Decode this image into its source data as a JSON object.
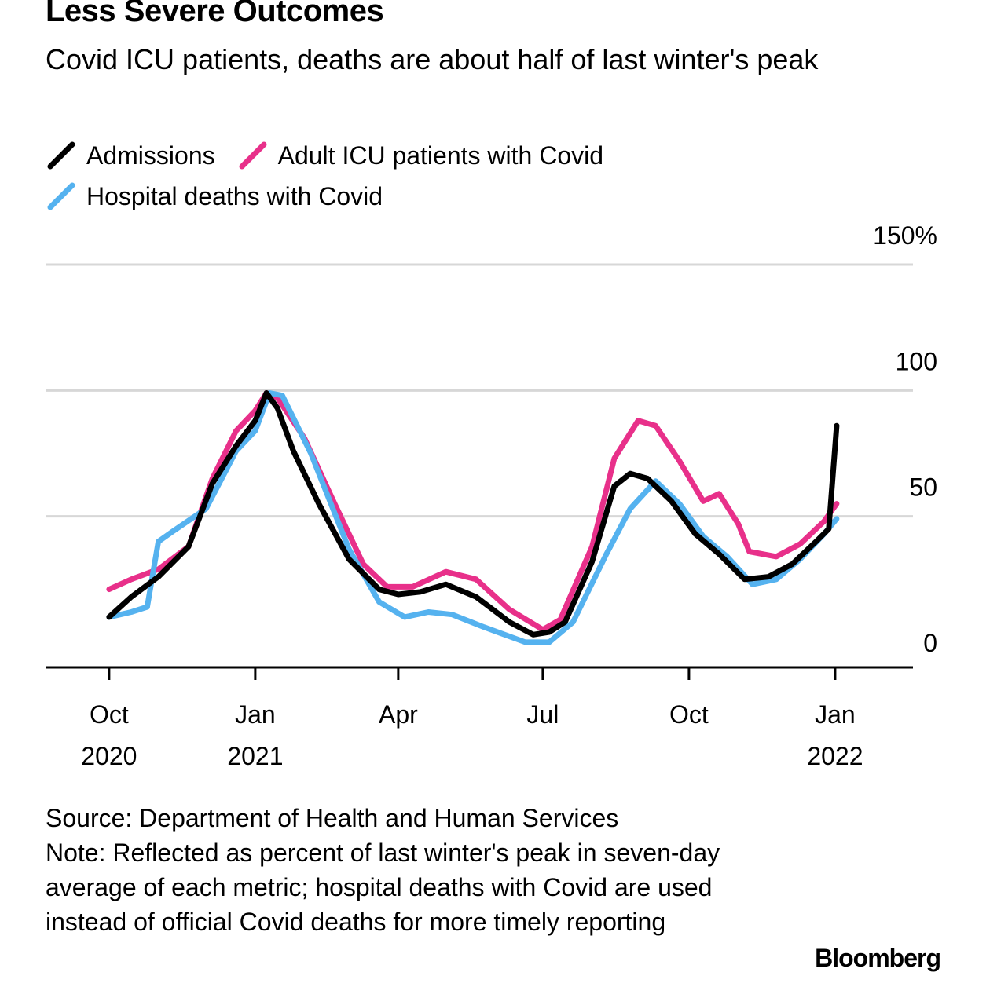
{
  "title": "Less Severe Outcomes",
  "subtitle": "Covid ICU patients, deaths are about half of last winter's peak",
  "legend": [
    {
      "label": "Admissions",
      "color": "#000000"
    },
    {
      "label": "Adult ICU patients with Covid",
      "color": "#e8308a"
    },
    {
      "label": "Hospital deaths with Covid",
      "color": "#55b2ef"
    }
  ],
  "source": "Source: Department of Health and Human Services",
  "note": "Note: Reflected as percent of last winter's peak in seven-day average of each metric; hospital deaths with Covid are used instead of official Covid deaths for more timely reporting",
  "logo": "Bloomberg",
  "chart_data": {
    "type": "line",
    "ylim": [
      -10,
      150
    ],
    "yticks": [
      {
        "value": 0,
        "label": "0"
      },
      {
        "value": 50,
        "label": "50"
      },
      {
        "value": 100,
        "label": "100"
      },
      {
        "value": 150,
        "label": "150%"
      }
    ],
    "xlim": [
      "2020-08-22",
      "2022-02-19"
    ],
    "xticks": [
      {
        "date": "2020-10-01",
        "label": [
          "Oct",
          "2020"
        ]
      },
      {
        "date": "2021-01-01",
        "label": [
          "Jan",
          "2021"
        ]
      },
      {
        "date": "2021-04-01",
        "label": [
          "Apr"
        ]
      },
      {
        "date": "2021-07-01",
        "label": [
          "Jul"
        ]
      },
      {
        "date": "2021-10-01",
        "label": [
          "Oct"
        ]
      },
      {
        "date": "2022-01-01",
        "label": [
          "Jan",
          "2022"
        ]
      }
    ],
    "grid": true,
    "series": [
      {
        "name": "Admissions",
        "color": "#000000",
        "points": [
          [
            "2020-10-01",
            10
          ],
          [
            "2020-10-15",
            18
          ],
          [
            "2020-11-01",
            26
          ],
          [
            "2020-11-20",
            38
          ],
          [
            "2020-12-05",
            63
          ],
          [
            "2020-12-20",
            78
          ],
          [
            "2021-01-01",
            88
          ],
          [
            "2021-01-08",
            99
          ],
          [
            "2021-01-15",
            93
          ],
          [
            "2021-01-25",
            76
          ],
          [
            "2021-02-10",
            55
          ],
          [
            "2021-03-01",
            33
          ],
          [
            "2021-03-20",
            21
          ],
          [
            "2021-04-01",
            19
          ],
          [
            "2021-04-15",
            20
          ],
          [
            "2021-05-01",
            23
          ],
          [
            "2021-05-20",
            18
          ],
          [
            "2021-06-10",
            8
          ],
          [
            "2021-06-25",
            3
          ],
          [
            "2021-07-05",
            4
          ],
          [
            "2021-07-15",
            8
          ],
          [
            "2021-08-01",
            32
          ],
          [
            "2021-08-15",
            62
          ],
          [
            "2021-08-25",
            67
          ],
          [
            "2021-09-05",
            65
          ],
          [
            "2021-09-20",
            56
          ],
          [
            "2021-10-05",
            43
          ],
          [
            "2021-10-20",
            35
          ],
          [
            "2021-11-05",
            25
          ],
          [
            "2021-11-20",
            26
          ],
          [
            "2021-12-05",
            31
          ],
          [
            "2021-12-20",
            40
          ],
          [
            "2021-12-28",
            45
          ],
          [
            "2022-01-02",
            86
          ]
        ]
      },
      {
        "name": "Adult ICU patients with Covid",
        "color": "#e8308a",
        "points": [
          [
            "2020-10-01",
            21
          ],
          [
            "2020-10-15",
            25
          ],
          [
            "2020-11-01",
            29
          ],
          [
            "2020-11-20",
            38
          ],
          [
            "2020-12-05",
            65
          ],
          [
            "2020-12-20",
            84
          ],
          [
            "2021-01-01",
            92
          ],
          [
            "2021-01-08",
            99
          ],
          [
            "2021-01-15",
            97
          ],
          [
            "2021-02-01",
            81
          ],
          [
            "2021-02-20",
            55
          ],
          [
            "2021-03-10",
            31
          ],
          [
            "2021-03-25",
            22
          ],
          [
            "2021-04-10",
            22
          ],
          [
            "2021-05-01",
            28
          ],
          [
            "2021-05-20",
            25
          ],
          [
            "2021-06-10",
            13
          ],
          [
            "2021-07-01",
            5
          ],
          [
            "2021-07-12",
            9
          ],
          [
            "2021-08-01",
            38
          ],
          [
            "2021-08-15",
            73
          ],
          [
            "2021-08-30",
            88
          ],
          [
            "2021-09-10",
            86
          ],
          [
            "2021-09-25",
            72
          ],
          [
            "2021-10-10",
            56
          ],
          [
            "2021-10-20",
            59
          ],
          [
            "2021-11-01",
            47
          ],
          [
            "2021-11-08",
            36
          ],
          [
            "2021-11-25",
            34
          ],
          [
            "2021-12-10",
            39
          ],
          [
            "2021-12-25",
            48
          ],
          [
            "2022-01-02",
            55
          ]
        ]
      },
      {
        "name": "Hospital deaths with Covid",
        "color": "#55b2ef",
        "points": [
          [
            "2020-10-01",
            10
          ],
          [
            "2020-10-15",
            12
          ],
          [
            "2020-10-25",
            14
          ],
          [
            "2020-11-01",
            40
          ],
          [
            "2020-11-10",
            44
          ],
          [
            "2020-12-01",
            53
          ],
          [
            "2020-12-20",
            76
          ],
          [
            "2021-01-01",
            84
          ],
          [
            "2021-01-10",
            99
          ],
          [
            "2021-01-18",
            98
          ],
          [
            "2021-02-05",
            75
          ],
          [
            "2021-03-01",
            37
          ],
          [
            "2021-03-20",
            16
          ],
          [
            "2021-04-05",
            10
          ],
          [
            "2021-04-20",
            12
          ],
          [
            "2021-05-05",
            11
          ],
          [
            "2021-05-25",
            6
          ],
          [
            "2021-06-20",
            0
          ],
          [
            "2021-07-05",
            0
          ],
          [
            "2021-07-20",
            8
          ],
          [
            "2021-08-10",
            35
          ],
          [
            "2021-08-25",
            53
          ],
          [
            "2021-09-10",
            64
          ],
          [
            "2021-09-25",
            55
          ],
          [
            "2021-10-10",
            42
          ],
          [
            "2021-10-25",
            34
          ],
          [
            "2021-11-10",
            23
          ],
          [
            "2021-11-25",
            25
          ],
          [
            "2021-12-10",
            33
          ],
          [
            "2021-12-25",
            43
          ],
          [
            "2022-01-02",
            49
          ]
        ]
      }
    ]
  }
}
